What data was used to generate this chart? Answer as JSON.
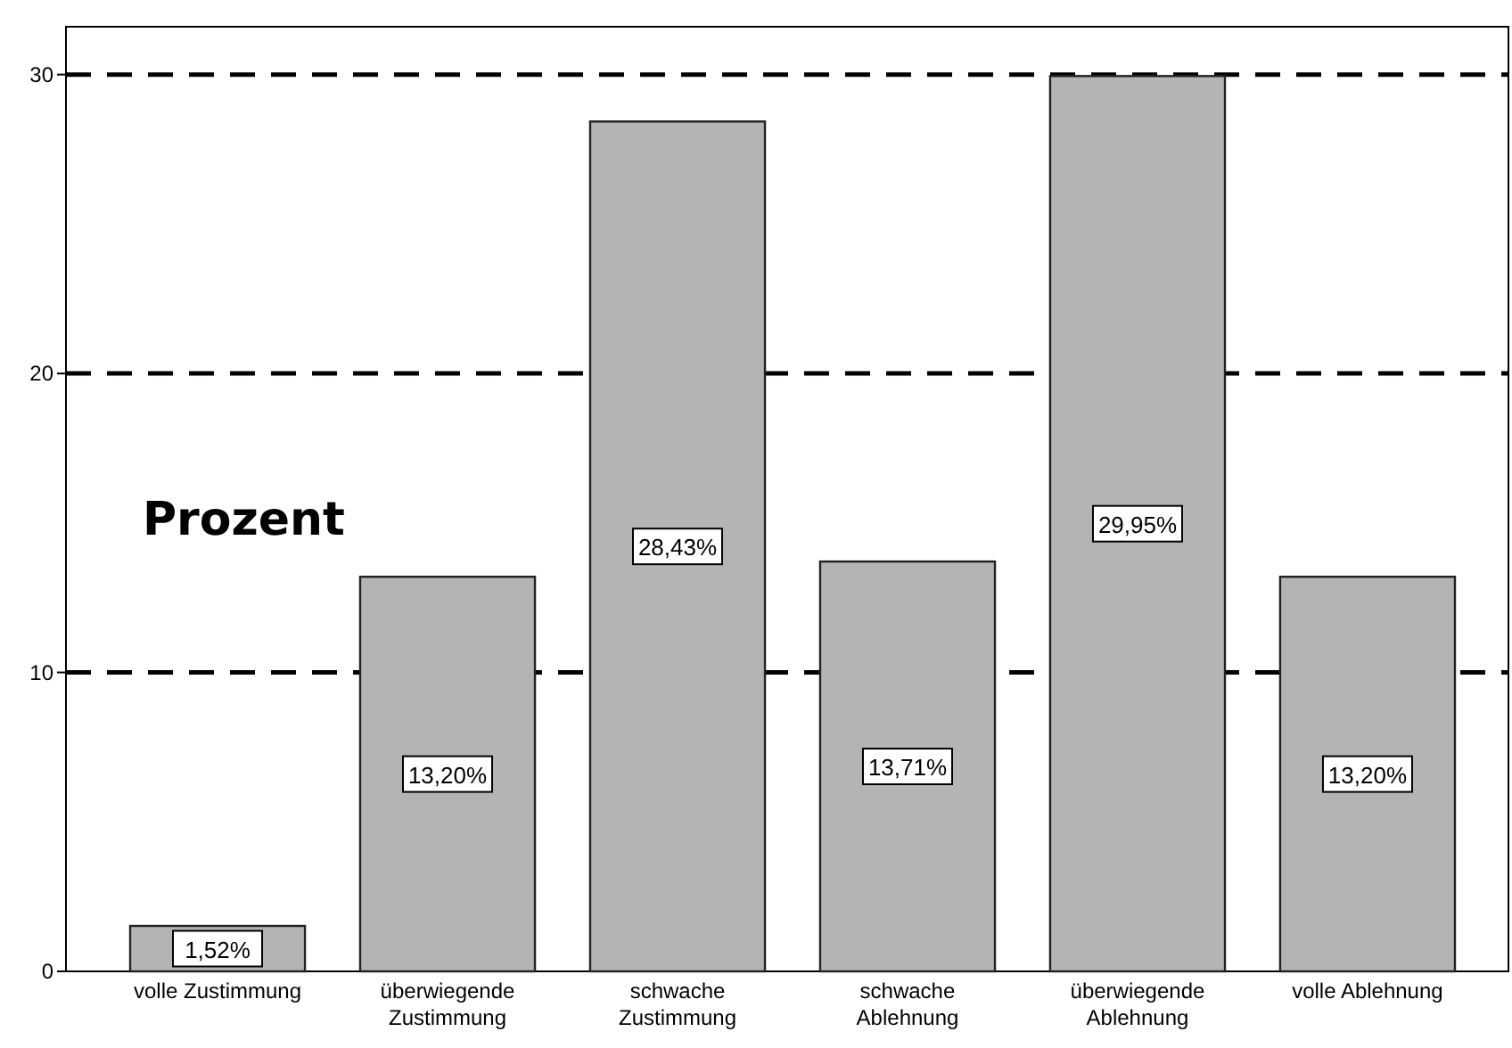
{
  "chart_data": {
    "type": "bar",
    "ylabel": "Prozent",
    "categories": [
      "volle Zustimmung",
      "überwiegende Zustimmung",
      "schwache Zustimmung",
      "schwache Ablehnung",
      "überwiegende Ablehnung",
      "volle Ablehnung"
    ],
    "values": [
      1.52,
      13.2,
      28.43,
      13.71,
      29.95,
      13.2
    ],
    "value_labels": [
      "1,52%",
      "13,20%",
      "28,43%",
      "13,71%",
      "29,95%",
      "13,20%"
    ],
    "color": "#b4b4b4",
    "ylim": [
      0,
      31.6
    ],
    "yticks": [
      0,
      10,
      20,
      30
    ],
    "grid": "y"
  }
}
